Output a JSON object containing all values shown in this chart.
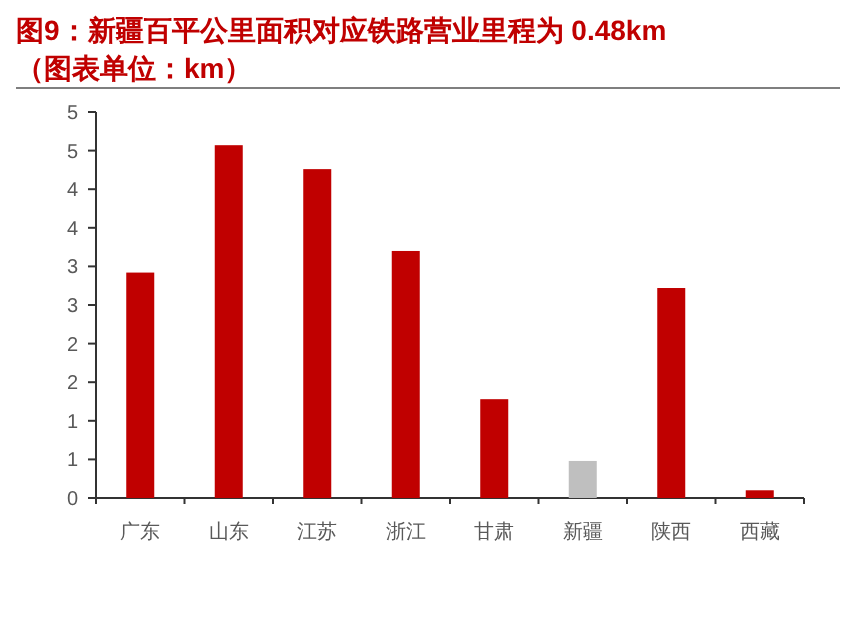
{
  "chart_data": {
    "type": "bar",
    "title": "图9：新疆百平公里面积对应铁路营业里程为 0.48km",
    "subtitle": "（图表单位：km）",
    "categories": [
      "广东",
      "山东",
      "江苏",
      "浙江",
      "甘肃",
      "新疆",
      "陕西",
      "西藏"
    ],
    "values": [
      2.92,
      4.57,
      4.26,
      3.2,
      1.28,
      0.48,
      2.72,
      0.1
    ],
    "colors": [
      "#c00000",
      "#c00000",
      "#c00000",
      "#c00000",
      "#c00000",
      "#bfbfbf",
      "#c00000",
      "#c00000"
    ],
    "ylim": [
      0,
      5
    ],
    "yticks": [
      0,
      {
        "value": 0.5,
        "label": "1"
      },
      1,
      {
        "value": 1.5,
        "label": "2"
      },
      2,
      {
        "value": 2.5,
        "label": "3"
      },
      3,
      {
        "value": 3.5,
        "label": "4"
      },
      4,
      {
        "value": 4.5,
        "label": "5"
      },
      5
    ],
    "grid": false
  }
}
